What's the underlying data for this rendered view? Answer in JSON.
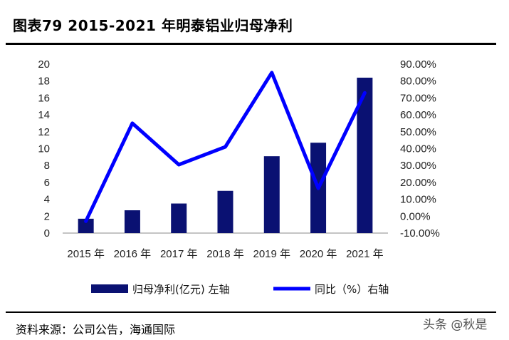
{
  "header": {
    "title": "图表79  2015-2021 年明泰铝业归母净利"
  },
  "footer": {
    "source": "资料来源：公司公告，海通国际",
    "watermark": "头条 @秋是"
  },
  "chart_data": {
    "type": "bar",
    "categories": [
      "2015 年",
      "2016 年",
      "2017 年",
      "2018 年",
      "2019 年",
      "2020 年",
      "2021 年"
    ],
    "series": [
      {
        "name": "归母净利(亿元) 左轴",
        "type": "bar",
        "axis": "left",
        "color": "#0a1172",
        "values": [
          1.7,
          2.7,
          3.5,
          5.0,
          9.1,
          10.7,
          18.4
        ]
      },
      {
        "name": "同比（%）右轴",
        "type": "line",
        "axis": "right",
        "color": "#0000ff",
        "values": [
          -3.0,
          55.0,
          30.5,
          41.0,
          85.0,
          16.5,
          73.0
        ]
      }
    ],
    "left_axis": {
      "ylim": [
        0,
        20
      ],
      "ticks": [
        "0",
        "2",
        "4",
        "6",
        "8",
        "10",
        "12",
        "14",
        "16",
        "18",
        "20"
      ]
    },
    "right_axis": {
      "ylim": [
        -10,
        90
      ],
      "ticks": [
        "-10.00%",
        "0.00%",
        "10.00%",
        "20.00%",
        "30.00%",
        "40.00%",
        "50.00%",
        "60.00%",
        "70.00%",
        "80.00%",
        "90.00%"
      ]
    },
    "grid": false,
    "legend_position": "bottom"
  }
}
